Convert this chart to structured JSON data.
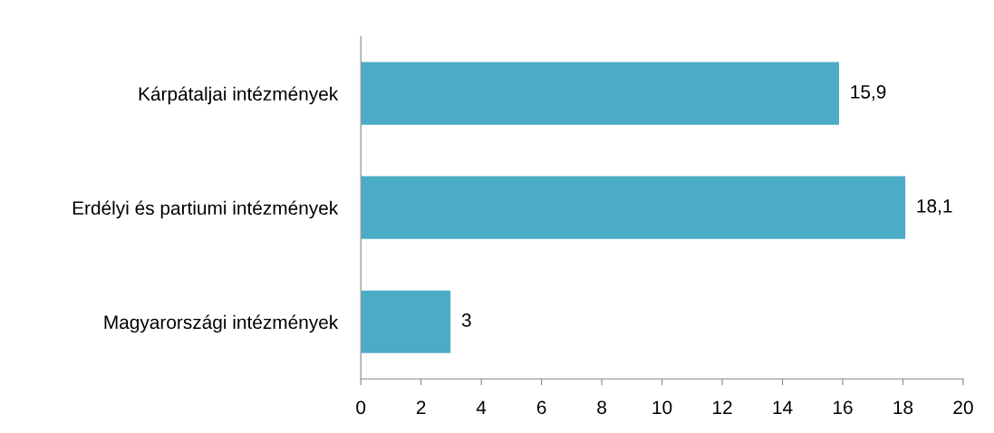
{
  "chart_data": {
    "type": "bar",
    "orientation": "horizontal",
    "categories": [
      "Kárpátaljai intézmények",
      "Erdélyi és partiumi intézmények",
      "Magyarországi intézmények"
    ],
    "values": [
      15.9,
      18.1,
      3
    ],
    "value_labels": [
      "15,9",
      "18,1",
      "3"
    ],
    "color": "#4bacc6",
    "xlim": [
      0,
      20
    ],
    "xticks": [
      0,
      2,
      4,
      6,
      8,
      10,
      12,
      14,
      16,
      18,
      20
    ],
    "grid": false
  }
}
